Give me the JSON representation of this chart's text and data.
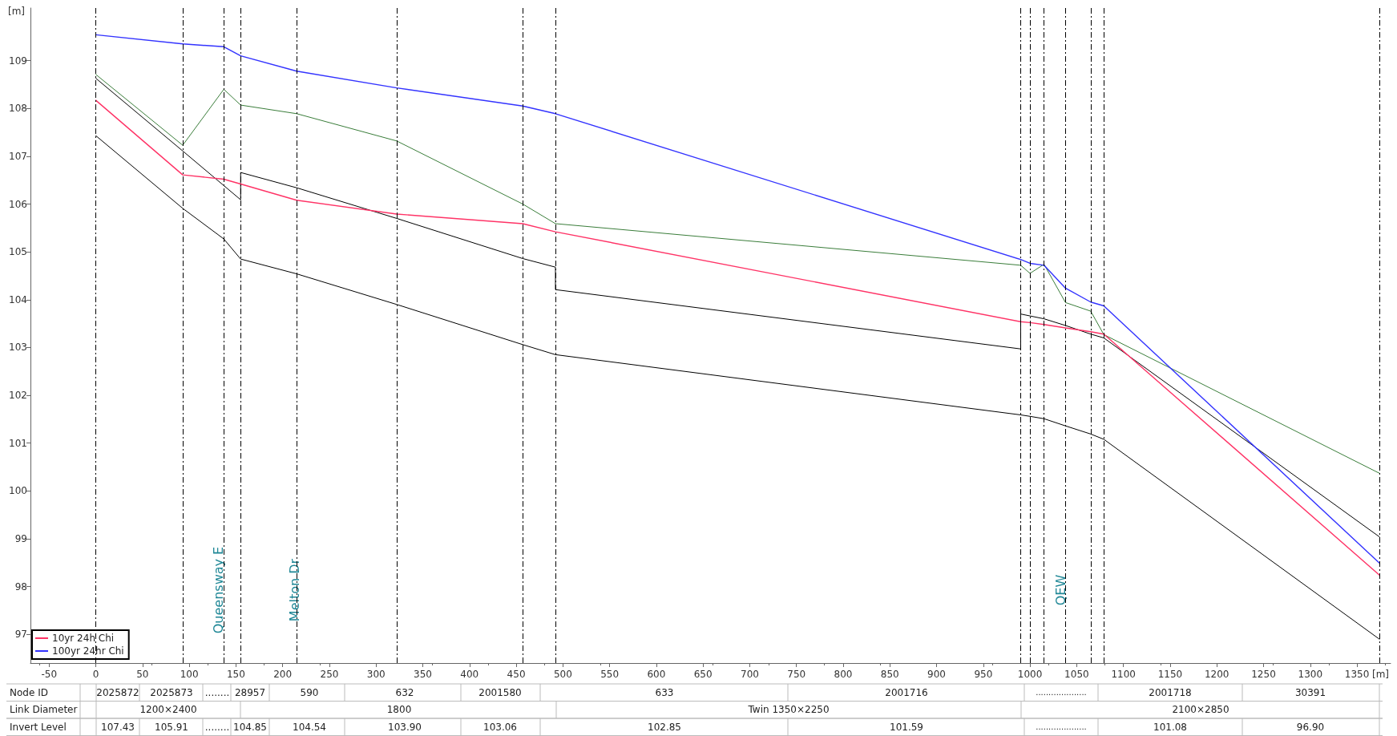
{
  "chart_data": {
    "type": "line",
    "xlabel": "[m]",
    "ylabel": "[m]",
    "xlim": [
      -70,
      1386
    ],
    "xticks": [
      -50,
      0,
      50,
      100,
      150,
      200,
      250,
      300,
      350,
      400,
      450,
      500,
      550,
      600,
      650,
      700,
      750,
      800,
      850,
      900,
      950,
      1000,
      1050,
      1100,
      1150,
      1200,
      1250,
      1300,
      1350
    ],
    "ylim": [
      96.4,
      110.1
    ],
    "yticks": [
      97,
      98,
      99,
      100,
      101,
      102,
      103,
      104,
      105,
      106,
      107,
      108,
      109
    ],
    "grid": false,
    "legend": "bottom left",
    "marker": "none",
    "line_style": "solid",
    "series": [
      {
        "name": "10yr 24h Chi",
        "color": "#ff3366",
        "x": [
          0,
          93,
          137,
          155,
          215,
          322,
          457,
          492,
          990,
          1000,
          1015,
          1038,
          1065,
          1079,
          1374
        ],
        "values": [
          108.17,
          106.61,
          106.52,
          106.42,
          106.08,
          105.79,
          105.59,
          105.42,
          103.54,
          103.52,
          103.48,
          103.41,
          103.33,
          103.28,
          98.24
        ]
      },
      {
        "name": "100yr 24hr Chi",
        "color": "#3333ff",
        "x": [
          0,
          93,
          137,
          155,
          215,
          322,
          457,
          492,
          990,
          1000,
          1015,
          1038,
          1065,
          1079,
          1374
        ],
        "values": [
          109.54,
          109.35,
          109.29,
          109.1,
          108.78,
          108.43,
          108.05,
          107.89,
          104.84,
          104.76,
          104.72,
          104.24,
          103.95,
          103.87,
          98.49
        ]
      },
      {
        "color": "#3a7d3a",
        "x": [
          0,
          93,
          137,
          155,
          215,
          322,
          457,
          492,
          990,
          1000,
          1015,
          1038,
          1065,
          1079,
          1374
        ],
        "values": [
          108.71,
          107.23,
          108.4,
          108.07,
          107.89,
          107.32,
          106.0,
          105.59,
          104.72,
          104.55,
          104.74,
          103.94,
          103.76,
          103.27,
          100.37
        ]
      },
      {
        "color": "#000000",
        "x": [
          0,
          93,
          155,
          155,
          215,
          322,
          457,
          492,
          492,
          990,
          990,
          1000,
          1015,
          1038,
          1065,
          1079,
          1374
        ],
        "values": [
          108.63,
          107.11,
          106.09,
          106.66,
          106.34,
          105.7,
          104.86,
          104.68,
          104.21,
          102.97,
          103.7,
          103.66,
          103.6,
          103.46,
          103.28,
          103.2,
          99.04
        ]
      },
      {
        "color": "#000000",
        "x": [
          0,
          93,
          137,
          155,
          215,
          322,
          457,
          492,
          990,
          1000,
          1015,
          1038,
          1065,
          1079,
          1374
        ],
        "values": [
          107.43,
          105.91,
          105.27,
          104.85,
          104.54,
          103.9,
          103.06,
          102.85,
          101.59,
          101.56,
          101.51,
          101.36,
          101.19,
          101.08,
          96.9
        ]
      }
    ],
    "ref_lines": [
      {
        "axis": "x",
        "value": 0,
        "color": "#000000",
        "line_style": "dashed"
      },
      {
        "axis": "x",
        "value": 93,
        "color": "#000000",
        "line_style": "dashed"
      },
      {
        "axis": "x",
        "value": 137,
        "color": "#000000",
        "line_style": "dashed"
      },
      {
        "axis": "x",
        "value": 155,
        "color": "#000000",
        "line_style": "dashed"
      },
      {
        "axis": "x",
        "value": 215,
        "color": "#000000",
        "line_style": "dashed"
      },
      {
        "axis": "x",
        "value": 322,
        "color": "#000000",
        "line_style": "dashed"
      },
      {
        "axis": "x",
        "value": 457,
        "color": "#000000",
        "line_style": "dashed"
      },
      {
        "axis": "x",
        "value": 492,
        "color": "#000000",
        "line_style": "dashed"
      },
      {
        "axis": "x",
        "value": 990,
        "color": "#000000",
        "line_style": "dashed"
      },
      {
        "axis": "x",
        "value": 1000,
        "color": "#000000",
        "line_style": "dashed"
      },
      {
        "axis": "x",
        "value": 1015,
        "color": "#000000",
        "line_style": "dashed"
      },
      {
        "axis": "x",
        "value": 1038,
        "color": "#000000",
        "line_style": "dashed"
      },
      {
        "axis": "x",
        "value": 1065,
        "color": "#000000",
        "line_style": "dashed"
      },
      {
        "axis": "x",
        "value": 1079,
        "color": "#000000",
        "line_style": "dashed"
      },
      {
        "axis": "x",
        "value": 1374,
        "color": "#000000",
        "line_style": "dashed"
      }
    ],
    "annotations": [
      "Queensway E",
      "Melton Dr",
      "QEW",
      "Node ID",
      "2025872",
      "2025873",
      "........",
      "28957",
      "590",
      "632",
      "2001580",
      "633",
      "2001716",
      "....................",
      "2001718",
      "30391",
      "Link Diameter",
      "1200×2400",
      "1800",
      "Twin 1350×2250",
      "2100×2850",
      "Invert Level",
      "107.43",
      "105.91",
      "........",
      "104.85",
      "104.54",
      "103.90",
      "103.06",
      "102.85",
      "101.59",
      "....................",
      "101.08",
      "96.90"
    ]
  }
}
